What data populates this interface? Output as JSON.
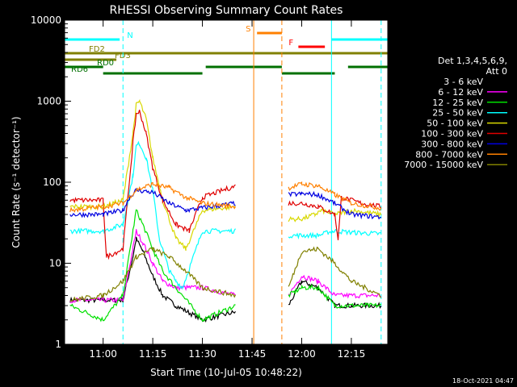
{
  "chart_data": {
    "type": "line",
    "title": "RHESSI Observing Summary Count Rates",
    "xlabel": "Start Time (10-Jul-05 10:48:22)",
    "ylabel": "Count Rate (s⁻¹ detector⁻¹)",
    "yscale": "log",
    "ylim": [
      1,
      10000
    ],
    "xlim": [
      "10:48:22",
      "12:26:00"
    ],
    "x_ticks": [
      "11:00",
      "11:15",
      "11:30",
      "11:45",
      "12:00",
      "12:15"
    ],
    "y_ticks": [
      "1",
      "10",
      "100",
      "1000",
      "10000"
    ],
    "timestamp": "18-Oct-2021 04:47",
    "legend": {
      "position": "right",
      "header": [
        "Det 1,3,4,5,6,9,",
        "Att 0"
      ],
      "entries": [
        {
          "label": "3 - 6 keV",
          "color": "#000000"
        },
        {
          "label": "6 - 12 keV",
          "color": "#ff00ff"
        },
        {
          "label": "12 - 25 keV",
          "color": "#00e000"
        },
        {
          "label": "25 - 50 keV",
          "color": "#00ffff"
        },
        {
          "label": "50 - 100 keV",
          "color": "#d8d800"
        },
        {
          "label": "100 - 300 keV",
          "color": "#e00000"
        },
        {
          "label": "300 - 800 keV",
          "color": "#0000e0"
        },
        {
          "label": "800 - 7000 keV",
          "color": "#ff8000"
        },
        {
          "label": "7000 - 15000 keV",
          "color": "#808000"
        }
      ]
    },
    "flags": [
      {
        "label": "N",
        "color": "#00ffff",
        "segments": [
          [
            "10:48:22",
            "11:05:00"
          ],
          [
            "12:09:00",
            "12:26:00"
          ]
        ]
      },
      {
        "label": "S",
        "color": "#ff8000",
        "segments": [
          [
            "11:46:30",
            "11:54:00"
          ]
        ]
      },
      {
        "label": "F",
        "color": "#ff0000",
        "segments": [
          [
            "11:59:00",
            "12:07:00"
          ]
        ]
      },
      {
        "label": "FD2",
        "color": "#808000",
        "segments": [
          [
            "10:48:22",
            "12:26:00"
          ]
        ]
      },
      {
        "label": "FD3",
        "color": "#808000",
        "segments": [
          [
            "10:48:22",
            "11:04:00"
          ]
        ]
      },
      {
        "label": "RD0",
        "color": "#007000",
        "segments": [
          [
            "10:48:22",
            "11:00:00"
          ],
          [
            "11:31:00",
            "11:54:00"
          ],
          [
            "12:14:00",
            "12:26:00"
          ]
        ]
      },
      {
        "label": "RD6",
        "color": "#007000",
        "segments": [
          [
            "11:00:00",
            "11:30:00"
          ],
          [
            "11:54:00",
            "12:10:00"
          ]
        ]
      }
    ],
    "vlines": [
      {
        "time": "10:48:22",
        "color": "#00ffff",
        "style": "dashed"
      },
      {
        "time": "11:06:00",
        "color": "#00ffff",
        "style": "dashed"
      },
      {
        "time": "11:45:30",
        "color": "#ff8000",
        "style": "solid"
      },
      {
        "time": "11:54:00",
        "color": "#ff8000",
        "style": "dashed"
      },
      {
        "time": "12:09:00",
        "color": "#00ffff",
        "style": "solid"
      },
      {
        "time": "12:24:00",
        "color": "#00ffff",
        "style": "dashed"
      }
    ],
    "data_gap": [
      "11:41:00",
      "11:55:00"
    ],
    "series": [
      {
        "name": "3 - 6 keV",
        "color": "#000000",
        "points": [
          [
            "10:50:00",
            3.5
          ],
          [
            "11:00:00",
            3.5
          ],
          [
            "11:06:00",
            3.5
          ],
          [
            "11:09:00",
            12
          ],
          [
            "11:10:00",
            20
          ],
          [
            "11:12:00",
            14
          ],
          [
            "11:15:00",
            7
          ],
          [
            "11:18:00",
            4
          ],
          [
            "11:22:00",
            3
          ],
          [
            "11:30:00",
            2
          ],
          [
            "11:40:00",
            2.5
          ],
          [
            "11:56:00",
            3
          ],
          [
            "12:00:00",
            6
          ],
          [
            "12:05:00",
            5
          ],
          [
            "12:10:00",
            3
          ],
          [
            "12:15:00",
            3
          ],
          [
            "12:24:00",
            3
          ]
        ]
      },
      {
        "name": "6 - 12 keV",
        "color": "#ff00ff",
        "points": [
          [
            "10:50:00",
            3.5
          ],
          [
            "11:06:00",
            3.5
          ],
          [
            "11:09:00",
            15
          ],
          [
            "11:10:00",
            25
          ],
          [
            "11:12:00",
            18
          ],
          [
            "11:15:00",
            10
          ],
          [
            "11:18:00",
            6
          ],
          [
            "11:22:00",
            5
          ],
          [
            "11:30:00",
            5
          ],
          [
            "11:40:00",
            4
          ],
          [
            "11:56:00",
            4
          ],
          [
            "12:00:00",
            7
          ],
          [
            "12:05:00",
            6
          ],
          [
            "12:10:00",
            4
          ],
          [
            "12:24:00",
            4
          ]
        ]
      },
      {
        "name": "12 - 25 keV",
        "color": "#00e000",
        "points": [
          [
            "10:50:00",
            3
          ],
          [
            "11:00:00",
            2
          ],
          [
            "11:06:00",
            4
          ],
          [
            "11:09:00",
            25
          ],
          [
            "11:10:00",
            45
          ],
          [
            "11:12:00",
            30
          ],
          [
            "11:15:00",
            15
          ],
          [
            "11:18:00",
            8
          ],
          [
            "11:22:00",
            5
          ],
          [
            "11:30:00",
            2
          ],
          [
            "11:40:00",
            3
          ],
          [
            "11:56:00",
            4
          ],
          [
            "12:00:00",
            5
          ],
          [
            "12:05:00",
            5
          ],
          [
            "12:10:00",
            3
          ],
          [
            "12:24:00",
            3
          ]
        ]
      },
      {
        "name": "25 - 50 keV",
        "color": "#00ffff",
        "points": [
          [
            "10:50:00",
            25
          ],
          [
            "11:00:00",
            25
          ],
          [
            "11:06:00",
            30
          ],
          [
            "11:09:00",
            120
          ],
          [
            "11:10:00",
            280
          ],
          [
            "11:11:00",
            300
          ],
          [
            "11:13:00",
            200
          ],
          [
            "11:15:00",
            80
          ],
          [
            "11:17:00",
            20
          ],
          [
            "11:20:00",
            8
          ],
          [
            "11:22:00",
            6
          ],
          [
            "11:24:00",
            5
          ],
          [
            "11:30:00",
            25
          ],
          [
            "11:40:00",
            25
          ],
          [
            "11:56:00",
            22
          ],
          [
            "12:00:00",
            22
          ],
          [
            "12:05:00",
            22
          ],
          [
            "12:08:00",
            24
          ],
          [
            "12:10:00",
            25
          ],
          [
            "12:15:00",
            24
          ],
          [
            "12:24:00",
            23
          ]
        ]
      },
      {
        "name": "50 - 100 keV",
        "color": "#d8d800",
        "points": [
          [
            "10:50:00",
            50
          ],
          [
            "11:00:00",
            50
          ],
          [
            "11:06:00",
            60
          ],
          [
            "11:09:00",
            400
          ],
          [
            "11:10:00",
            900
          ],
          [
            "11:11:00",
            1000
          ],
          [
            "11:13:00",
            600
          ],
          [
            "11:15:00",
            200
          ],
          [
            "11:18:00",
            60
          ],
          [
            "11:22:00",
            20
          ],
          [
            "11:25:00",
            15
          ],
          [
            "11:30:00",
            45
          ],
          [
            "11:40:00",
            50
          ],
          [
            "11:56:00",
            35
          ],
          [
            "12:00:00",
            35
          ],
          [
            "12:04:00",
            40
          ],
          [
            "12:06:00",
            45
          ],
          [
            "12:10:00",
            40
          ],
          [
            "12:15:00",
            45
          ],
          [
            "12:24:00",
            40
          ]
        ]
      },
      {
        "name": "100 - 300 keV",
        "color": "#e00000",
        "points": [
          [
            "10:50:00",
            60
          ],
          [
            "11:00:00",
            60
          ],
          [
            "11:01:00",
            12
          ],
          [
            "11:06:00",
            15
          ],
          [
            "11:09:00",
            300
          ],
          [
            "11:10:00",
            700
          ],
          [
            "11:11:00",
            750
          ],
          [
            "11:13:00",
            400
          ],
          [
            "11:15:00",
            150
          ],
          [
            "11:18:00",
            60
          ],
          [
            "11:22:00",
            30
          ],
          [
            "11:26:00",
            25
          ],
          [
            "11:30:00",
            65
          ],
          [
            "11:40:00",
            90
          ],
          [
            "11:56:00",
            55
          ],
          [
            "12:00:00",
            55
          ],
          [
            "12:05:00",
            50
          ],
          [
            "12:10:00",
            40
          ],
          [
            "12:11:00",
            20
          ],
          [
            "12:12:00",
            65
          ],
          [
            "12:18:00",
            55
          ],
          [
            "12:24:00",
            50
          ]
        ]
      },
      {
        "name": "300 - 800 keV",
        "color": "#0000e0",
        "points": [
          [
            "10:50:00",
            40
          ],
          [
            "11:00:00",
            40
          ],
          [
            "11:06:00",
            45
          ],
          [
            "11:08:00",
            65
          ],
          [
            "11:10:00",
            80
          ],
          [
            "11:15:00",
            75
          ],
          [
            "11:20:00",
            55
          ],
          [
            "11:25:00",
            45
          ],
          [
            "11:30:00",
            48
          ],
          [
            "11:40:00",
            55
          ],
          [
            "11:56:00",
            70
          ],
          [
            "12:00:00",
            72
          ],
          [
            "12:05:00",
            70
          ],
          [
            "12:10:00",
            55
          ],
          [
            "12:15:00",
            40
          ],
          [
            "12:24:00",
            37
          ]
        ]
      },
      {
        "name": "800 - 7000 keV",
        "color": "#ff8000",
        "points": [
          [
            "10:50:00",
            45
          ],
          [
            "11:00:00",
            50
          ],
          [
            "11:06:00",
            55
          ],
          [
            "11:10:00",
            80
          ],
          [
            "11:15:00",
            95
          ],
          [
            "11:20:00",
            85
          ],
          [
            "11:25:00",
            65
          ],
          [
            "11:30:00",
            55
          ],
          [
            "11:40:00",
            50
          ],
          [
            "11:56:00",
            85
          ],
          [
            "12:00:00",
            95
          ],
          [
            "12:05:00",
            90
          ],
          [
            "12:10:00",
            70
          ],
          [
            "12:15:00",
            55
          ],
          [
            "12:24:00",
            48
          ]
        ]
      },
      {
        "name": "7000 - 15000 keV",
        "color": "#808000",
        "points": [
          [
            "10:50:00",
            3.5
          ],
          [
            "11:00:00",
            4
          ],
          [
            "11:06:00",
            6
          ],
          [
            "11:10:00",
            12
          ],
          [
            "11:15:00",
            15
          ],
          [
            "11:20:00",
            12
          ],
          [
            "11:25:00",
            8
          ],
          [
            "11:30:00",
            5
          ],
          [
            "11:40:00",
            4
          ],
          [
            "11:56:00",
            5
          ],
          [
            "12:00:00",
            14
          ],
          [
            "12:05:00",
            15
          ],
          [
            "12:10:00",
            10
          ],
          [
            "12:15:00",
            6
          ],
          [
            "12:24:00",
            4
          ]
        ]
      }
    ]
  }
}
